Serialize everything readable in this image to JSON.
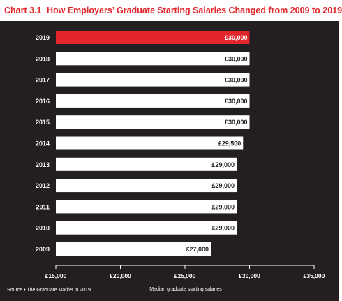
{
  "chart_label": "Chart 3.1",
  "title": "How Employers’ Graduate Starting Salaries Changed from 2009 to 2019",
  "source": "Source • The Graduate Market in 2019",
  "colors": {
    "background": "#231f20",
    "bar": "#ffffff",
    "highlight": "#e3262b",
    "text": "#ffffff",
    "title": "#e3262b"
  },
  "chart_data": {
    "type": "bar",
    "orientation": "horizontal",
    "categories": [
      "2019",
      "2018",
      "2017",
      "2016",
      "2015",
      "2014",
      "2013",
      "2012",
      "2011",
      "2010",
      "2009"
    ],
    "values": [
      30000,
      30000,
      30000,
      30000,
      30000,
      29500,
      29000,
      29000,
      29000,
      29000,
      27000
    ],
    "value_labels": [
      "£30,000",
      "£30,000",
      "£30,000",
      "£30,000",
      "£30,000",
      "£29,500",
      "£29,000",
      "£29,000",
      "£29,000",
      "£29,000",
      "£27,000"
    ],
    "highlight_category": "2019",
    "xlabel": "Median graduate starting salaries",
    "xlim": [
      15000,
      35000
    ],
    "xticks": [
      15000,
      20000,
      25000,
      30000,
      35000
    ],
    "xtick_labels": [
      "£15,000",
      "£20,000",
      "£25,000",
      "£30,000",
      "£35,000"
    ],
    "grid": false,
    "legend": "none"
  }
}
